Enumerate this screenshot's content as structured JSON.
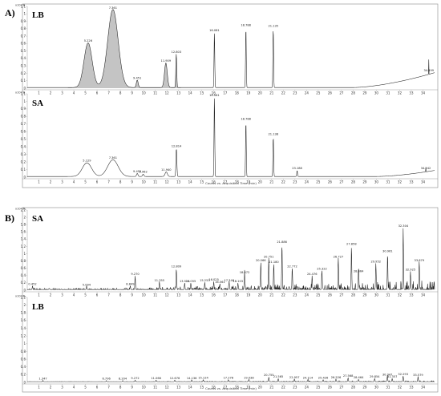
{
  "panels": [
    {
      "letter": "A)"
    },
    {
      "letter": "B)"
    }
  ],
  "chart_data": [
    {
      "type": "line",
      "panel": "A)",
      "sample": "LB",
      "multiplier": "x10^8",
      "ylim": [
        0,
        1.1
      ],
      "yticks": [
        "0",
        "0.1",
        "0.2",
        "0.3",
        "0.4",
        "0.5",
        "0.6",
        "0.7",
        "0.8",
        "0.9",
        "1",
        "1.1"
      ],
      "xlim": [
        0,
        35
      ],
      "xticks": [
        "1",
        "2",
        "3",
        "4",
        "5",
        "6",
        "7",
        "8",
        "9",
        "10",
        "11",
        "12",
        "13",
        "14",
        "15",
        "16",
        "17",
        "18",
        "19",
        "20",
        "21",
        "22",
        "23",
        "24",
        "25",
        "26",
        "27",
        "28",
        "29",
        "30",
        "31",
        "32",
        "33",
        "34"
      ],
      "xlabel": "",
      "peaks": [
        {
          "rt": 5.226,
          "label": "5.226",
          "height": 0.6,
          "width": 0.35
        },
        {
          "rt": 7.361,
          "label": "7.361",
          "height": 1.05,
          "width": 0.45
        },
        {
          "rt": 9.451,
          "label": "9.451",
          "height": 0.1,
          "width": 0.08
        },
        {
          "rt": 11.909,
          "label": "11.909",
          "height": 0.33,
          "width": 0.12
        },
        {
          "rt": 12.803,
          "label": "12.803",
          "height": 0.45,
          "width": 0.04
        },
        {
          "rt": 16.081,
          "label": "16.081",
          "height": 0.74,
          "width": 0.03
        },
        {
          "rt": 18.788,
          "label": "18.788",
          "height": 0.81,
          "width": 0.03
        },
        {
          "rt": 21.135,
          "label": "21.135",
          "height": 0.8,
          "width": 0.03
        },
        {
          "rt": 34.499,
          "label": "34.499",
          "height": 0.2,
          "width": 0.01
        }
      ],
      "baseline_rise": {
        "start": 28.0,
        "end": 35.0,
        "end_value": 0.2
      }
    },
    {
      "type": "line",
      "panel": "A)",
      "sample": "SA",
      "multiplier": "x10^8",
      "ylim": [
        0,
        1.1
      ],
      "yticks": [
        "0",
        "0.1",
        "0.2",
        "0.3",
        "0.4",
        "0.5",
        "0.6",
        "0.7",
        "0.8",
        "0.9",
        "1",
        "1.1"
      ],
      "xlim": [
        0,
        35
      ],
      "xticks": [
        "1",
        "2",
        "3",
        "4",
        "5",
        "6",
        "7",
        "8",
        "9",
        "10",
        "11",
        "12",
        "13",
        "14",
        "15",
        "16",
        "17",
        "18",
        "19",
        "20",
        "21",
        "22",
        "23",
        "24",
        "25",
        "26",
        "27",
        "28",
        "29",
        "30",
        "31",
        "32",
        "33",
        "34"
      ],
      "xlabel": "Counts vs. Acquisition Time (min)",
      "peaks": [
        {
          "rt": 5.129,
          "label": "5.129",
          "height": 0.18,
          "width": 0.4
        },
        {
          "rt": 7.361,
          "label": "7.361",
          "height": 0.22,
          "width": 0.45
        },
        {
          "rt": 9.452,
          "label": "9.452",
          "height": 0.04,
          "width": 0.06
        },
        {
          "rt": 9.962,
          "label": "9.962",
          "height": 0.03,
          "width": 0.06
        },
        {
          "rt": 11.94,
          "label": "11.940",
          "height": 0.06,
          "width": 0.1
        },
        {
          "rt": 12.814,
          "label": "12.814",
          "height": 0.37,
          "width": 0.04
        },
        {
          "rt": 16.081,
          "label": "16.081",
          "height": 1.05,
          "width": 0.03
        },
        {
          "rt": 18.788,
          "label": "18.788",
          "height": 0.73,
          "width": 0.03
        },
        {
          "rt": 21.138,
          "label": "21.138",
          "height": 0.53,
          "width": 0.03
        },
        {
          "rt": 23.188,
          "label": "23.188",
          "height": 0.08,
          "width": 0.03
        },
        {
          "rt": 34.242,
          "label": "34.242",
          "height": 0.08,
          "width": 0.01
        }
      ],
      "baseline_rise": {
        "start": 30.0,
        "end": 35.0,
        "end_value": 0.08
      }
    },
    {
      "type": "line",
      "panel": "B)",
      "sample": "SA",
      "multiplier": "x10^6",
      "ylim": [
        0,
        2.2
      ],
      "yticks": [
        "0",
        "0.2",
        "0.4",
        "0.6",
        "0.8",
        "1",
        "1.2",
        "1.4",
        "1.6",
        "1.8",
        "2",
        "2.2"
      ],
      "xlim": [
        0,
        35
      ],
      "xticks": [
        "1",
        "2",
        "3",
        "4",
        "5",
        "6",
        "7",
        "8",
        "9",
        "10",
        "11",
        "12",
        "13",
        "14",
        "15",
        "16",
        "17",
        "18",
        "19",
        "20",
        "21",
        "22",
        "23",
        "24",
        "25",
        "26",
        "27",
        "28",
        "29",
        "30",
        "31",
        "32",
        "33",
        "34"
      ],
      "xlabel": "",
      "peaks": [
        {
          "rt": 0.452,
          "label": "0.452",
          "height": 0.1
        },
        {
          "rt": 5.094,
          "label": "5.094",
          "height": 0.08
        },
        {
          "rt": 8.849,
          "label": "8.849",
          "height": 0.1
        },
        {
          "rt": 9.27,
          "label": "9.270",
          "height": 0.38
        },
        {
          "rt": 11.355,
          "label": "11.355",
          "height": 0.2
        },
        {
          "rt": 12.809,
          "label": "12.809",
          "height": 0.58
        },
        {
          "rt": 13.524,
          "label": "13.524",
          "height": 0.18
        },
        {
          "rt": 14.055,
          "label": "14.055",
          "height": 0.18
        },
        {
          "rt": 15.253,
          "label": "15.253",
          "height": 0.2
        },
        {
          "rt": 16.025,
          "label": "16.025",
          "height": 0.22
        },
        {
          "rt": 16.561,
          "label": "16.561",
          "height": 0.15
        },
        {
          "rt": 17.346,
          "label": "17.346",
          "height": 0.2
        },
        {
          "rt": 18.103,
          "label": "18.103",
          "height": 0.18
        },
        {
          "rt": 18.672,
          "label": "18.672",
          "height": 0.42
        },
        {
          "rt": 20.066,
          "label": "20.066",
          "height": 0.75
        },
        {
          "rt": 20.751,
          "label": "20.751",
          "height": 0.85
        },
        {
          "rt": 21.18,
          "label": "21.180",
          "height": 0.7
        },
        {
          "rt": 21.886,
          "label": "21.886",
          "height": 1.25
        },
        {
          "rt": 22.772,
          "label": "22.772",
          "height": 0.58
        },
        {
          "rt": 24.476,
          "label": "24.476",
          "height": 0.38
        },
        {
          "rt": 25.322,
          "label": "25.322",
          "height": 0.52
        },
        {
          "rt": 26.727,
          "label": "26.727",
          "height": 0.85
        },
        {
          "rt": 27.858,
          "label": "27.858",
          "height": 1.2
        },
        {
          "rt": 28.464,
          "label": "28.464",
          "height": 0.45
        },
        {
          "rt": 29.952,
          "label": "29.952",
          "height": 0.72
        },
        {
          "rt": 30.961,
          "label": "30.961",
          "height": 1.0
        },
        {
          "rt": 32.304,
          "label": "32.304",
          "height": 1.7
        },
        {
          "rt": 32.925,
          "label": "32.925",
          "height": 0.5
        },
        {
          "rt": 33.679,
          "label": "33.679",
          "height": 0.75
        }
      ]
    },
    {
      "type": "line",
      "panel": "B)",
      "sample": "LB",
      "multiplier": "x10^6",
      "ylim": [
        0,
        2.2
      ],
      "yticks": [
        "0",
        "0.2",
        "0.4",
        "0.6",
        "0.8",
        "1",
        "1.2",
        "1.4",
        "1.6",
        "1.8",
        "2",
        "2.2"
      ],
      "xlim": [
        0,
        35
      ],
      "xticks": [
        "1",
        "2",
        "3",
        "4",
        "5",
        "6",
        "7",
        "8",
        "9",
        "10",
        "11",
        "12",
        "13",
        "14",
        "15",
        "16",
        "17",
        "18",
        "19",
        "20",
        "21",
        "22",
        "23",
        "24",
        "25",
        "26",
        "27",
        "28",
        "29",
        "30",
        "31",
        "32",
        "33",
        "34"
      ],
      "xlabel": "Counts vs. Acquisition Time (min)",
      "peaks": [
        {
          "rt": 1.347,
          "label": "1.347",
          "height": 0.03
        },
        {
          "rt": 6.796,
          "label": "6.796",
          "height": 0.03
        },
        {
          "rt": 8.204,
          "label": "8.204",
          "height": 0.03
        },
        {
          "rt": 9.272,
          "label": "9.272",
          "height": 0.04
        },
        {
          "rt": 11.066,
          "label": "11.066",
          "height": 0.04
        },
        {
          "rt": 12.676,
          "label": "12.676",
          "height": 0.04
        },
        {
          "rt": 14.136,
          "label": "14.136",
          "height": 0.04
        },
        {
          "rt": 15.124,
          "label": "15.124",
          "height": 0.05
        },
        {
          "rt": 17.278,
          "label": "17.278",
          "height": 0.05
        },
        {
          "rt": 19.038,
          "label": "19.038",
          "height": 0.05
        },
        {
          "rt": 20.755,
          "label": "20.755",
          "height": 0.12
        },
        {
          "rt": 21.565,
          "label": "21.565",
          "height": 0.08
        },
        {
          "rt": 22.957,
          "label": "22.957",
          "height": 0.06
        },
        {
          "rt": 24.114,
          "label": "24.114",
          "height": 0.05
        },
        {
          "rt": 25.426,
          "label": "25.426",
          "height": 0.05
        },
        {
          "rt": 26.526,
          "label": "26.526",
          "height": 0.06
        },
        {
          "rt": 27.568,
          "label": "27.568",
          "height": 0.1
        },
        {
          "rt": 28.464,
          "label": "28.464",
          "height": 0.06
        },
        {
          "rt": 29.854,
          "label": "29.854",
          "height": 0.08
        },
        {
          "rt": 30.947,
          "label": "30.947",
          "height": 0.14
        },
        {
          "rt": 31.357,
          "label": "31.357",
          "height": 0.08
        },
        {
          "rt": 32.293,
          "label": "32.293",
          "height": 0.15
        },
        {
          "rt": 33.579,
          "label": "33.579",
          "height": 0.12
        }
      ]
    }
  ]
}
